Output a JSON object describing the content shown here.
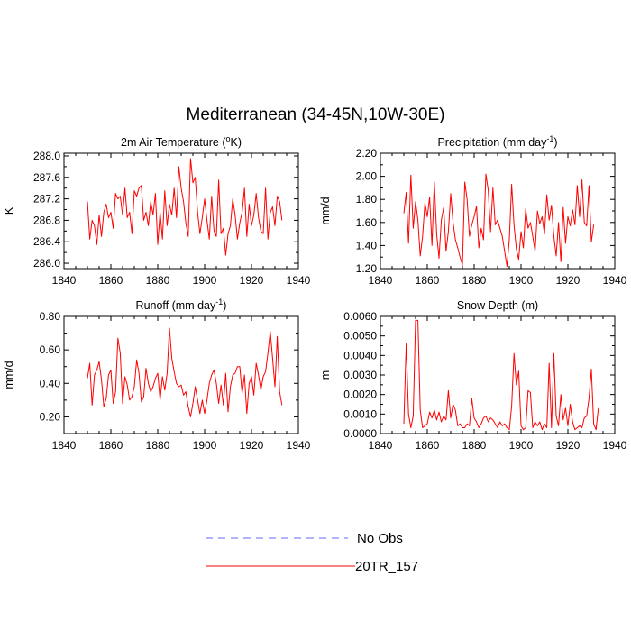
{
  "title": "Mediterranean (34-45N,10W-30E)",
  "colors": {
    "model": "#ff0000",
    "obs": "#6666ff",
    "axis": "#000000"
  },
  "legend": [
    {
      "label": "No Obs",
      "style": "dashed",
      "color": "#6666ff"
    },
    {
      "label": "20TR_157",
      "style": "solid",
      "color": "#ff0000"
    }
  ],
  "chart_data": [
    {
      "type": "line",
      "title": "2m Air Temperature (°K)",
      "title_parts": {
        "pre": "2m Air Temperature (",
        "sup": "o",
        "post": "K)"
      },
      "ylabel": "K",
      "xlim": [
        1840,
        1940
      ],
      "ylim": [
        285.9,
        288.05
      ],
      "xticks": [
        1840,
        1860,
        1880,
        1900,
        1920,
        1940
      ],
      "yticks": [
        286.0,
        286.4,
        286.8,
        287.2,
        287.6,
        288.0
      ],
      "ytick_labels": [
        "286.0",
        "286.4",
        "286.8",
        "287.2",
        "287.6",
        "288.0"
      ],
      "series": [
        {
          "name": "20TR_157",
          "x_start": 1850,
          "values": [
            287.15,
            286.45,
            286.8,
            286.7,
            286.35,
            286.9,
            286.5,
            286.95,
            287.1,
            286.85,
            286.95,
            286.65,
            287.3,
            287.2,
            287.25,
            286.9,
            287.4,
            286.85,
            286.95,
            286.55,
            287.35,
            287.25,
            287.4,
            287.45,
            286.8,
            286.95,
            286.7,
            287.15,
            286.9,
            287.3,
            286.35,
            286.95,
            286.45,
            287.35,
            286.7,
            287.1,
            286.9,
            287.4,
            286.85,
            287.8,
            287.4,
            287.15,
            286.75,
            286.5,
            287.95,
            287.5,
            287.6,
            286.95,
            286.55,
            286.85,
            287.2,
            286.8,
            286.45,
            287.25,
            286.6,
            286.5,
            287.55,
            286.55,
            286.65,
            286.15,
            286.55,
            286.7,
            287.2,
            286.9,
            286.45,
            286.75,
            286.95,
            287.4,
            286.5,
            287.1,
            286.7,
            286.9,
            287.3,
            286.85,
            286.6,
            286.55,
            287.4,
            286.45,
            286.95,
            287.05,
            286.7,
            287.25,
            287.15,
            286.8
          ]
        }
      ]
    },
    {
      "type": "line",
      "title": "Precipitation (mm day-1)",
      "title_parts": {
        "pre": "Precipitation (mm day",
        "sup": "-1",
        "post": ")"
      },
      "ylabel": "mm/d",
      "xlim": [
        1840,
        1940
      ],
      "ylim": [
        1.2,
        2.2
      ],
      "xticks": [
        1840,
        1860,
        1880,
        1900,
        1920,
        1940
      ],
      "yticks": [
        1.2,
        1.4,
        1.6,
        1.8,
        2.0,
        2.2
      ],
      "ytick_labels": [
        "1.20",
        "1.40",
        "1.60",
        "1.80",
        "2.00",
        "2.20"
      ],
      "series": [
        {
          "name": "20TR_157",
          "x_start": 1850,
          "values": [
            1.68,
            1.86,
            1.42,
            2.01,
            1.55,
            1.78,
            1.62,
            1.31,
            1.48,
            1.77,
            1.65,
            1.82,
            1.4,
            1.95,
            1.5,
            1.29,
            1.62,
            1.73,
            1.35,
            1.52,
            1.85,
            1.6,
            1.45,
            1.38,
            1.3,
            1.23,
            1.95,
            1.8,
            1.48,
            1.58,
            1.65,
            1.74,
            1.38,
            1.55,
            1.45,
            2.02,
            1.88,
            1.52,
            1.9,
            1.58,
            1.62,
            1.55,
            1.48,
            1.35,
            1.22,
            1.45,
            1.93,
            1.58,
            1.37,
            1.28,
            1.52,
            1.38,
            1.72,
            1.55,
            1.6,
            1.48,
            1.35,
            1.7,
            1.59,
            1.65,
            1.5,
            1.84,
            1.62,
            1.75,
            1.48,
            1.31,
            1.6,
            1.26,
            1.73,
            1.42,
            1.65,
            1.57,
            1.71,
            1.58,
            1.92,
            1.65,
            1.97,
            1.6,
            1.57,
            1.92,
            1.43,
            1.58
          ]
        }
      ]
    },
    {
      "type": "line",
      "title": "Runoff (mm day-1)",
      "title_parts": {
        "pre": "Runoff (mm day",
        "sup": "-1",
        "post": ")"
      },
      "ylabel": "mm/d",
      "xlim": [
        1840,
        1940
      ],
      "ylim": [
        0.1,
        0.8
      ],
      "xticks": [
        1840,
        1860,
        1880,
        1900,
        1920,
        1940
      ],
      "yticks": [
        0.2,
        0.4,
        0.6,
        0.8
      ],
      "ytick_labels": [
        "0.20",
        "0.40",
        "0.60",
        "0.80"
      ],
      "series": [
        {
          "name": "20TR_157",
          "x_start": 1850,
          "values": [
            0.43,
            0.52,
            0.27,
            0.45,
            0.48,
            0.53,
            0.42,
            0.26,
            0.31,
            0.45,
            0.48,
            0.28,
            0.35,
            0.67,
            0.58,
            0.28,
            0.44,
            0.39,
            0.3,
            0.32,
            0.38,
            0.54,
            0.46,
            0.29,
            0.32,
            0.49,
            0.4,
            0.35,
            0.38,
            0.43,
            0.46,
            0.3,
            0.44,
            0.36,
            0.46,
            0.73,
            0.55,
            0.47,
            0.4,
            0.38,
            0.39,
            0.33,
            0.35,
            0.26,
            0.2,
            0.28,
            0.38,
            0.3,
            0.22,
            0.3,
            0.22,
            0.3,
            0.4,
            0.45,
            0.48,
            0.4,
            0.28,
            0.39,
            0.27,
            0.46,
            0.23,
            0.38,
            0.45,
            0.46,
            0.5,
            0.5,
            0.34,
            0.45,
            0.22,
            0.4,
            0.44,
            0.33,
            0.52,
            0.45,
            0.36,
            0.44,
            0.47,
            0.58,
            0.71,
            0.55,
            0.38,
            0.68,
            0.35,
            0.27
          ]
        }
      ]
    },
    {
      "type": "line",
      "title": "Snow Depth (m)",
      "title_parts": {
        "pre": "Snow Depth (m)",
        "sup": "",
        "post": ""
      },
      "ylabel": "m",
      "xlim": [
        1840,
        1940
      ],
      "ylim": [
        0.0,
        0.006
      ],
      "xticks": [
        1840,
        1860,
        1880,
        1900,
        1920,
        1940
      ],
      "yticks": [
        0.0,
        0.001,
        0.002,
        0.003,
        0.004,
        0.005,
        0.006
      ],
      "ytick_labels": [
        "0.0000",
        "0.0010",
        "0.0020",
        "0.0030",
        "0.0040",
        "0.0050",
        "0.0060"
      ],
      "series": [
        {
          "name": "20TR_157",
          "x_start": 1850,
          "values": [
            0.0005,
            0.0046,
            0.001,
            0.0003,
            0.0009,
            0.0058,
            0.0058,
            0.0012,
            0.0003,
            0.0004,
            0.0005,
            0.0011,
            0.0008,
            0.0012,
            0.0007,
            0.0011,
            0.0006,
            0.0009,
            0.0007,
            0.0022,
            0.0008,
            0.0015,
            0.0012,
            0.0004,
            0.0005,
            0.0003,
            0.0003,
            0.0005,
            0.0004,
            0.0018,
            0.0008,
            0.0006,
            0.0003,
            0.0005,
            0.0008,
            0.0009,
            0.0006,
            0.0008,
            0.0007,
            0.0005,
            0.0003,
            0.0006,
            0.0004,
            0.0005,
            0.0003,
            0.0002,
            0.0014,
            0.0041,
            0.0025,
            0.0032,
            0.0004,
            0.0002,
            0.0003,
            0.0022,
            0.0021,
            0.0003,
            0.0006,
            0.0004,
            0.0006,
            0.0002,
            0.0005,
            0.0003,
            0.0036,
            0.0003,
            0.0041,
            0.0009,
            0.0004,
            0.002,
            0.0007,
            0.0013,
            0.0004,
            0.0015,
            0.0006,
            0.0002,
            0.0003,
            0.0004,
            0.0003,
            0.0008,
            0.0009,
            0.0018,
            0.0033,
            0.0005,
            0.0002,
            0.0013
          ]
        }
      ]
    }
  ]
}
